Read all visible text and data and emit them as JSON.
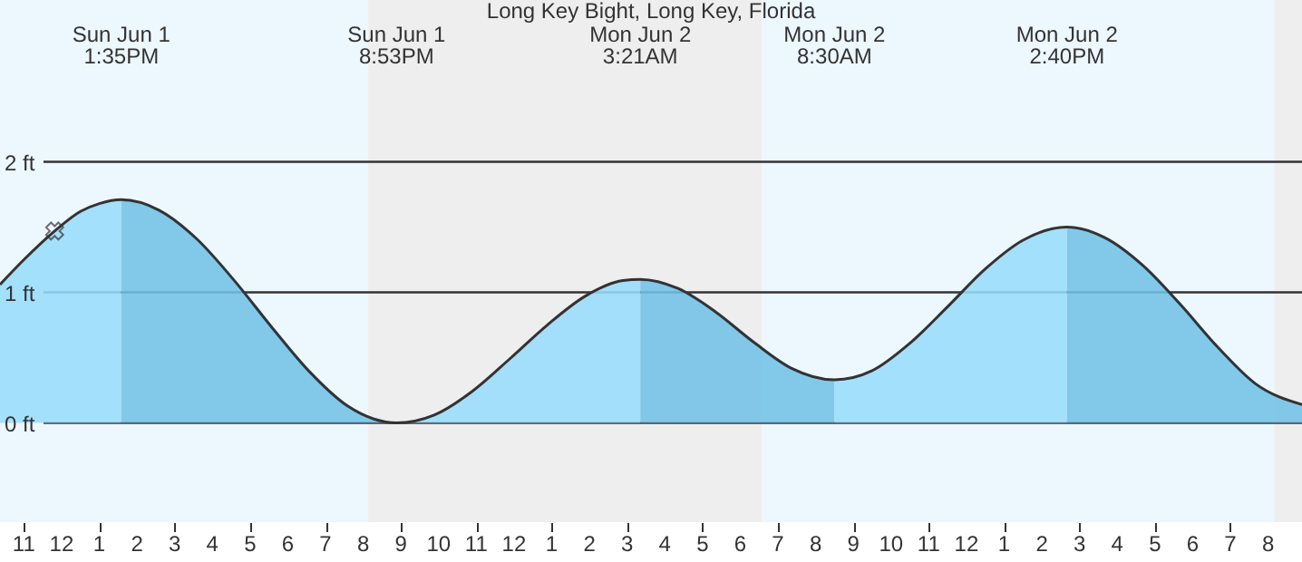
{
  "chart_data": {
    "type": "area",
    "title": "Long Key Bight, Long Key, Florida",
    "x": [
      "--06-01T10:22",
      "--06-01T11:00",
      "--06-01T11:49",
      "--06-01T12:30",
      "--06-01T13:00",
      "--06-01T13:35",
      "--06-01T14:35",
      "--06-01T15:35",
      "--06-01T16:35",
      "--06-01T17:35",
      "--06-01T18:35",
      "--06-01T19:35",
      "--06-01T20:17",
      "--06-01T20:53",
      "--06-01T21:53",
      "--06-01T22:53",
      "--06-01T23:53",
      "--06-02T00:53",
      "--06-02T01:53",
      "--06-02T02:53",
      "--06-02T03:21",
      "--06-02T04:21",
      "--06-02T05:21",
      "--06-02T06:21",
      "--06-02T07:21",
      "--06-02T08:30",
      "--06-02T09:30",
      "--06-02T10:30",
      "--06-02T11:30",
      "--06-02T12:30",
      "--06-02T13:30",
      "--06-02T14:40",
      "--06-02T15:40",
      "--06-02T16:40",
      "--06-02T17:40",
      "--06-02T18:40",
      "--06-02T19:40",
      "--06-02T20:54"
    ],
    "series": [
      {
        "color": "#99ddfc",
        "x": [
          "--06-01T10:22",
          "--06-01T11:00",
          "--06-01T11:49",
          "--06-01T12:30",
          "--06-01T13:00",
          "--06-01T13:35"
        ],
        "values": [
          1.06,
          1.25,
          1.47,
          1.62,
          1.68,
          1.71
        ]
      },
      {
        "color": "#73c2e6",
        "x": [
          "--06-01T13:35",
          "--06-01T14:35",
          "--06-01T15:35",
          "--06-01T16:35",
          "--06-01T17:35",
          "--06-01T18:35",
          "--06-01T19:35",
          "--06-01T20:17",
          "--06-01T20:53"
        ],
        "values": [
          1.71,
          1.63,
          1.41,
          1.09,
          0.73,
          0.39,
          0.13,
          0.03,
          0.0
        ]
      },
      {
        "color": "#99ddfc",
        "x": [
          "--06-01T20:53",
          "--06-01T21:53",
          "--06-01T22:53",
          "--06-01T23:53",
          "--06-02T00:53",
          "--06-02T01:53",
          "--06-02T02:53",
          "--06-02T03:21"
        ],
        "values": [
          0.0,
          0.06,
          0.24,
          0.49,
          0.75,
          0.97,
          1.09,
          1.1
        ]
      },
      {
        "color": "#73c2e6",
        "x": [
          "--06-02T03:21",
          "--06-02T04:21",
          "--06-02T05:21",
          "--06-02T06:21",
          "--06-02T07:21",
          "--06-02T08:30"
        ],
        "values": [
          1.1,
          1.03,
          0.85,
          0.62,
          0.42,
          0.33
        ]
      },
      {
        "color": "#99ddfc",
        "x": [
          "--06-02T08:30",
          "--06-02T09:30",
          "--06-02T10:30",
          "--06-02T11:30",
          "--06-02T12:30",
          "--06-02T13:30",
          "--06-02T14:40"
        ],
        "values": [
          0.33,
          0.4,
          0.61,
          0.89,
          1.18,
          1.4,
          1.5
        ]
      },
      {
        "color": "#73c2e6",
        "x": [
          "--06-02T14:40",
          "--06-02T15:40",
          "--06-02T16:40",
          "--06-02T17:40",
          "--06-02T18:40",
          "--06-02T19:40",
          "--06-02T20:54"
        ],
        "values": [
          1.5,
          1.42,
          1.21,
          0.91,
          0.58,
          0.3,
          0.14
        ]
      },
      {
        "type": "line",
        "color": "#333333",
        "values": [
          1.06,
          1.25,
          1.47,
          1.62,
          1.68,
          1.71,
          1.63,
          1.41,
          1.09,
          0.73,
          0.39,
          0.13,
          0.03,
          0.0,
          0.06,
          0.24,
          0.49,
          0.75,
          0.97,
          1.09,
          1.1,
          1.03,
          0.85,
          0.62,
          0.42,
          0.33,
          0.4,
          0.61,
          0.89,
          1.18,
          1.4,
          1.5,
          1.42,
          1.21,
          0.91,
          0.58,
          0.3,
          0.14
        ]
      },
      {
        "type": "scatter",
        "marker": "cross",
        "color": "#333333",
        "x": [
          "--06-01T11:49"
        ],
        "values": [
          1.47
        ]
      }
    ],
    "bands": [
      {
        "axis": "x",
        "from": "--06-01T20:08",
        "to": "--06-02T06:34",
        "color": "#eeeeee"
      },
      {
        "axis": "x",
        "from": "--06-02T20:10",
        "to": "--06-02T20:54",
        "color": "#eeeeee"
      }
    ],
    "xlim": [
      "--06-01T10:22",
      "--06-02T20:54"
    ],
    "xticks": [
      {
        "value": "--06-01T11:00",
        "label": "11"
      },
      {
        "value": "--06-01T12:00",
        "label": "12"
      },
      {
        "value": "--06-01T13:00",
        "label": "1"
      },
      {
        "value": "--06-01T14:00",
        "label": "2"
      },
      {
        "value": "--06-01T15:00",
        "label": "3"
      },
      {
        "value": "--06-01T16:00",
        "label": "4"
      },
      {
        "value": "--06-01T17:00",
        "label": "5"
      },
      {
        "value": "--06-01T18:00",
        "label": "6"
      },
      {
        "value": "--06-01T19:00",
        "label": "7"
      },
      {
        "value": "--06-01T20:00",
        "label": "8"
      },
      {
        "value": "--06-01T21:00",
        "label": "9"
      },
      {
        "value": "--06-01T22:00",
        "label": "10"
      },
      {
        "value": "--06-01T23:00",
        "label": "11"
      },
      {
        "value": "--06-02T00:00",
        "label": "12"
      },
      {
        "value": "--06-02T01:00",
        "label": "1"
      },
      {
        "value": "--06-02T02:00",
        "label": "2"
      },
      {
        "value": "--06-02T03:00",
        "label": "3"
      },
      {
        "value": "--06-02T04:00",
        "label": "4"
      },
      {
        "value": "--06-02T05:00",
        "label": "5"
      },
      {
        "value": "--06-02T06:00",
        "label": "6"
      },
      {
        "value": "--06-02T07:00",
        "label": "7"
      },
      {
        "value": "--06-02T08:00",
        "label": "8"
      },
      {
        "value": "--06-02T09:00",
        "label": "9"
      },
      {
        "value": "--06-02T10:00",
        "label": "10"
      },
      {
        "value": "--06-02T11:00",
        "label": "11"
      },
      {
        "value": "--06-02T12:00",
        "label": "12"
      },
      {
        "value": "--06-02T13:00",
        "label": "1"
      },
      {
        "value": "--06-02T14:00",
        "label": "2"
      },
      {
        "value": "--06-02T15:00",
        "label": "3"
      },
      {
        "value": "--06-02T16:00",
        "label": "4"
      },
      {
        "value": "--06-02T17:00",
        "label": "5"
      },
      {
        "value": "--06-02T18:00",
        "label": "6"
      },
      {
        "value": "--06-02T19:00",
        "label": "7"
      },
      {
        "value": "--06-02T20:00",
        "label": "8"
      }
    ],
    "x2lim": [
      "--06-01T10:22",
      "--06-02T20:54"
    ],
    "x2ticks": [
      {
        "value": "--06-01T13:35",
        "label": "Sun Jun  1\n1:35PM"
      },
      {
        "value": "--06-01T20:53",
        "label": "Sun Jun  1\n8:53PM"
      },
      {
        "value": "--06-02T03:21",
        "label": "Mon Jun  2\n3:21AM"
      },
      {
        "value": "--06-02T08:30",
        "label": "Mon Jun  2\n8:30AM"
      },
      {
        "value": "--06-02T14:40",
        "label": "Mon Jun  2\n2:40PM"
      }
    ],
    "ylim": [
      -0.76,
      3.24
    ],
    "yticks": [
      {
        "value": 0,
        "label": "0 ft"
      },
      {
        "value": 1,
        "label": "1 ft"
      },
      {
        "value": 2,
        "label": "2 ft"
      }
    ],
    "grid": "y"
  }
}
